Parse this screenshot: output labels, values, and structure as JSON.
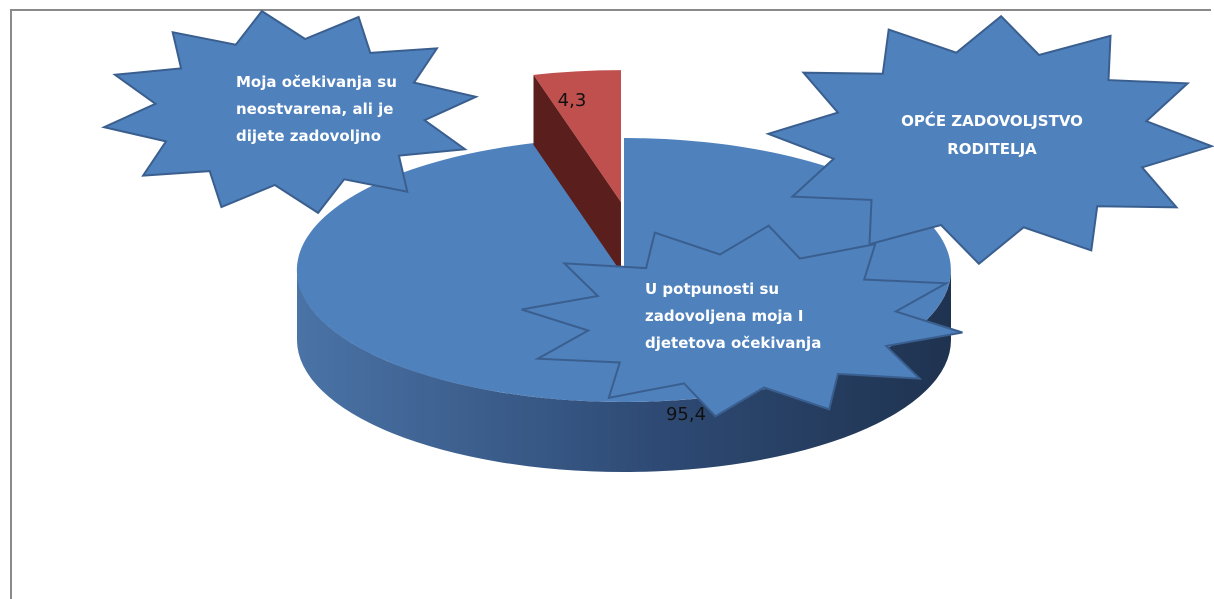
{
  "chart_data": {
    "type": "pie",
    "title": "",
    "slices": [
      {
        "name": "U potpunosti su zadovoljena moja I djetetova očekivanja",
        "value": 95.4,
        "label": "95,4"
      },
      {
        "name": "Moja očekivanja su neostvarena, ali je dijete zadovoljno",
        "value": 4.3,
        "label": "4,3"
      }
    ],
    "annotations": {
      "left_burst": [
        "Moja očekivanja su",
        "neostvarena, ali je",
        "dijete zadovoljno"
      ],
      "right_burst": [
        "OPĆE ZADOVOLJSTVO",
        "RODITELJA"
      ],
      "center_burst": [
        "U potpunosti su",
        "zadovoljena moja I",
        "djetetova očekivanja"
      ]
    },
    "colors": {
      "main": "#4f81bd",
      "main_dark": "#23385a",
      "small": "#c0504d",
      "small_dark": "#5a1e1c",
      "burst_stroke": "#3a5f8f"
    }
  }
}
